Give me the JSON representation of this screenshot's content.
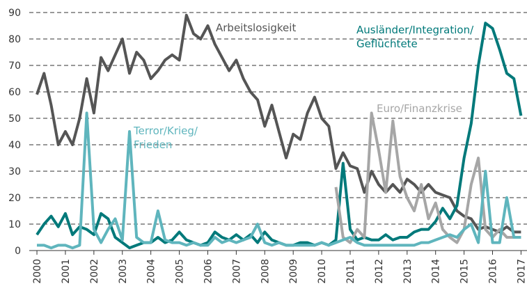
{
  "chart_data": {
    "type": "line",
    "x": [
      2000,
      2000.25,
      2000.5,
      2000.75,
      2001,
      2001.25,
      2001.5,
      2001.75,
      2002,
      2002.25,
      2002.5,
      2002.75,
      2003,
      2003.25,
      2003.5,
      2003.75,
      2004,
      2004.25,
      2004.5,
      2004.75,
      2005,
      2005.25,
      2005.5,
      2005.75,
      2006,
      2006.25,
      2006.5,
      2006.75,
      2007,
      2007.25,
      2007.5,
      2007.75,
      2008,
      2008.25,
      2008.5,
      2008.75,
      2009,
      2009.25,
      2009.5,
      2009.75,
      2010,
      2010.25,
      2010.5,
      2010.75,
      2011,
      2011.25,
      2011.5,
      2011.75,
      2012,
      2012.25,
      2012.5,
      2012.75,
      2013,
      2013.25,
      2013.5,
      2013.75,
      2014,
      2014.25,
      2014.5,
      2014.75,
      2015,
      2015.25,
      2015.5,
      2015.75,
      2016,
      2016.25,
      2016.5,
      2016.75,
      2017
    ],
    "series": [
      {
        "name": "Arbeitslosigkeit",
        "color": "#555555",
        "values": [
          59,
          67,
          55,
          40,
          45,
          40,
          50,
          65,
          52,
          73,
          68,
          74,
          80,
          67,
          75,
          72,
          65,
          68,
          72,
          74,
          72,
          89,
          82,
          80,
          85,
          78,
          73,
          68,
          72,
          65,
          60,
          57,
          47,
          55,
          45,
          35,
          44,
          42,
          52,
          58,
          50,
          47,
          31,
          37,
          32,
          31,
          22,
          30,
          25,
          22,
          25,
          22,
          27,
          25,
          22,
          25,
          22,
          21,
          20,
          15,
          13,
          12,
          8,
          9,
          8,
          7,
          9,
          7,
          7
        ]
      },
      {
        "name": "Ausländer/Integration/\nGeflüchtete",
        "color": "#00797a",
        "values": [
          6,
          10,
          13,
          9,
          14,
          6,
          9,
          8,
          6,
          14,
          12,
          5,
          3,
          1,
          2,
          3,
          3,
          5,
          3,
          4,
          7,
          4,
          3,
          2,
          3,
          7,
          5,
          4,
          6,
          4,
          6,
          3,
          7,
          4,
          3,
          2,
          2,
          3,
          3,
          2,
          3,
          2,
          4,
          33,
          8,
          4,
          5,
          4,
          4,
          6,
          4,
          5,
          5,
          7,
          8,
          8,
          11,
          16,
          12,
          17,
          35,
          48,
          70,
          86,
          84,
          76,
          67,
          65,
          51
        ]
      },
      {
        "name": "Euro/Finanzkrise",
        "color": "#a6a6a6",
        "values": [
          null,
          null,
          null,
          null,
          null,
          null,
          null,
          null,
          null,
          null,
          null,
          null,
          null,
          null,
          null,
          null,
          null,
          null,
          null,
          null,
          null,
          null,
          null,
          null,
          null,
          null,
          null,
          null,
          null,
          null,
          null,
          null,
          null,
          null,
          null,
          null,
          null,
          null,
          null,
          null,
          null,
          null,
          24,
          5,
          3,
          8,
          5,
          52,
          38,
          22,
          49,
          28,
          20,
          15,
          25,
          12,
          18,
          8,
          5,
          3,
          8,
          25,
          35,
          8,
          5,
          8,
          5,
          5,
          5
        ]
      },
      {
        "name": "Terror/Krieg/\nFrieden",
        "color": "#5fb5bd",
        "values": [
          2,
          2,
          1,
          2,
          2,
          1,
          2,
          52,
          8,
          3,
          8,
          12,
          4,
          45,
          5,
          3,
          3,
          15,
          4,
          3,
          3,
          2,
          3,
          2,
          2,
          5,
          3,
          4,
          3,
          4,
          5,
          10,
          3,
          2,
          3,
          2,
          2,
          2,
          2,
          2,
          3,
          2,
          3,
          4,
          5,
          3,
          2,
          2,
          2,
          2,
          2,
          2,
          2,
          2,
          3,
          3,
          4,
          5,
          6,
          5,
          8,
          10,
          3,
          30,
          3,
          3,
          20,
          5,
          5
        ]
      }
    ],
    "xlim": [
      1999.73,
      2017.21
    ],
    "xticks": [
      2000,
      2001,
      2002,
      2003,
      2004,
      2005,
      2006,
      2007,
      2008,
      2009,
      2010,
      2011,
      2012,
      2013,
      2014,
      2015,
      2016,
      2017
    ],
    "ylim": [
      0,
      90
    ],
    "yticks": [
      0,
      10,
      20,
      30,
      40,
      50,
      60,
      70,
      80,
      90
    ],
    "grid": true
  }
}
